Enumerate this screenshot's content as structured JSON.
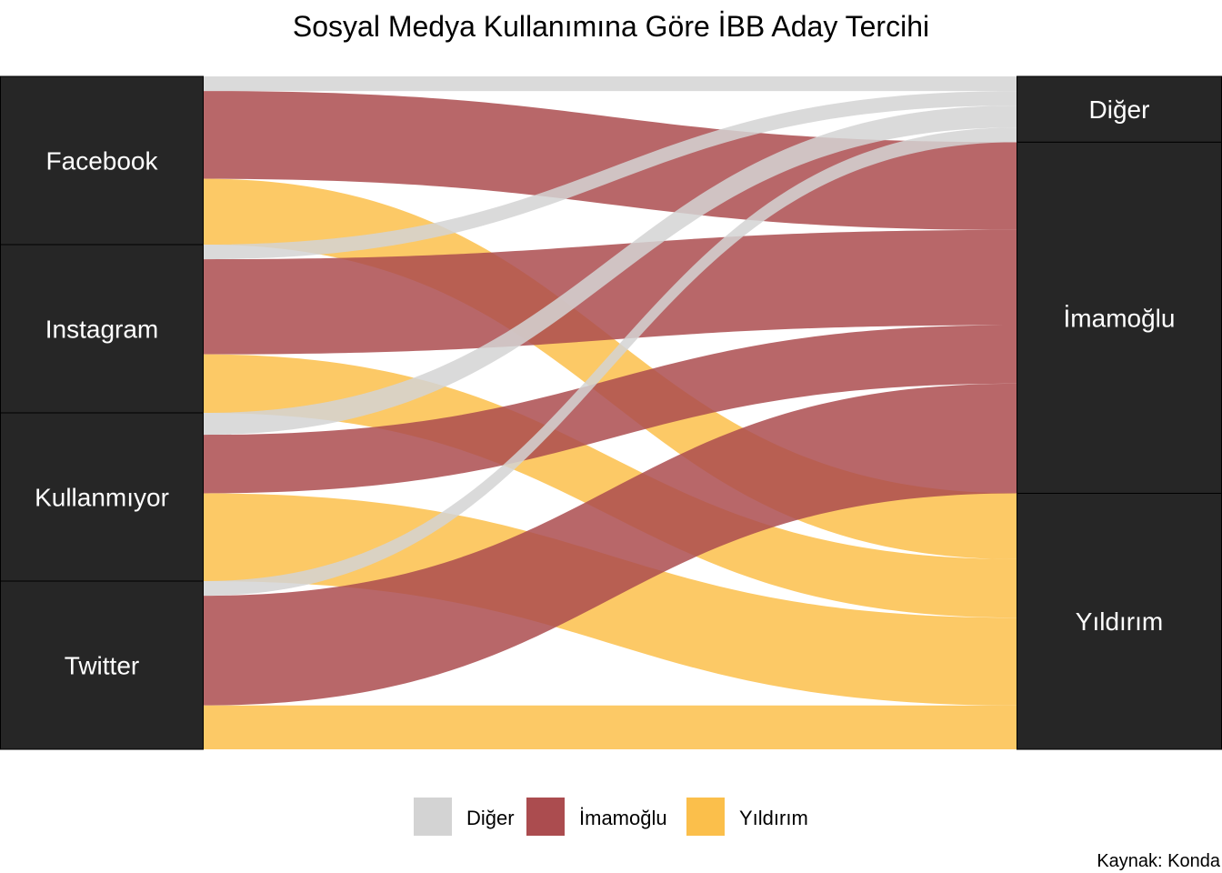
{
  "chart_data": {
    "type": "alluvial",
    "title": "Sosyal Medya Kullanımına Göre İBB Aday Tercihi",
    "caption": "Kaynak: Konda",
    "sources": [
      "Facebook",
      "Instagram",
      "Kullanmıyor",
      "Twitter"
    ],
    "targets": [
      "Diğer",
      "İmamoğlu",
      "Yıldırım"
    ],
    "colors": {
      "Diğer": "#d3d3d3",
      "İmamoğlu": "#ab4c4f",
      "Yıldırım": "#fbbf4b",
      "node": "#262626"
    },
    "flows": [
      {
        "source": "Facebook",
        "target": "Diğer",
        "value": 2
      },
      {
        "source": "Facebook",
        "target": "İmamoğlu",
        "value": 12
      },
      {
        "source": "Facebook",
        "target": "Yıldırım",
        "value": 9
      },
      {
        "source": "Instagram",
        "target": "Diğer",
        "value": 2
      },
      {
        "source": "Instagram",
        "target": "İmamoğlu",
        "value": 13
      },
      {
        "source": "Instagram",
        "target": "Yıldırım",
        "value": 8
      },
      {
        "source": "Kullanmıyor",
        "target": "Diğer",
        "value": 3
      },
      {
        "source": "Kullanmıyor",
        "target": "İmamoğlu",
        "value": 8
      },
      {
        "source": "Kullanmıyor",
        "target": "Yıldırım",
        "value": 12
      },
      {
        "source": "Twitter",
        "target": "Diğer",
        "value": 2
      },
      {
        "source": "Twitter",
        "target": "İmamoğlu",
        "value": 15
      },
      {
        "source": "Twitter",
        "target": "Yıldırım",
        "value": 6
      }
    ],
    "legend": [
      "Diğer",
      "İmamoğlu",
      "Yıldırım"
    ],
    "legend_position": "bottom"
  }
}
